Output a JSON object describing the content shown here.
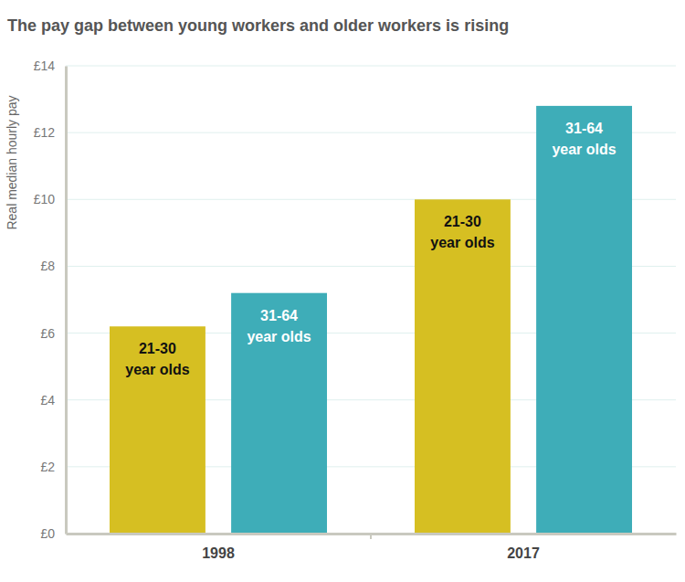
{
  "chart_data": {
    "type": "bar",
    "title": "The pay gap between young workers and older workers is rising",
    "y_label": "Real median hourly pay",
    "categories": [
      "1998",
      "2017"
    ],
    "series": [
      {
        "name": "21-30 year olds",
        "color": "#d6bf22",
        "values": [
          6.2,
          10
        ]
      },
      {
        "name": "31-64 year olds",
        "color": "#3eadb8",
        "values": [
          7.2,
          12.8
        ]
      }
    ],
    "ylim": [
      0,
      14
    ],
    "yticks": [
      {
        "value": 0,
        "label": "£0"
      },
      {
        "value": 2,
        "label": "£2"
      },
      {
        "value": 4,
        "label": "£4"
      },
      {
        "value": 6,
        "label": "£6"
      },
      {
        "value": 8,
        "label": "£8"
      },
      {
        "value": 10,
        "label": "£10"
      },
      {
        "value": 12,
        "label": "£12"
      },
      {
        "value": 14,
        "label": "£14"
      }
    ],
    "grid": true
  }
}
